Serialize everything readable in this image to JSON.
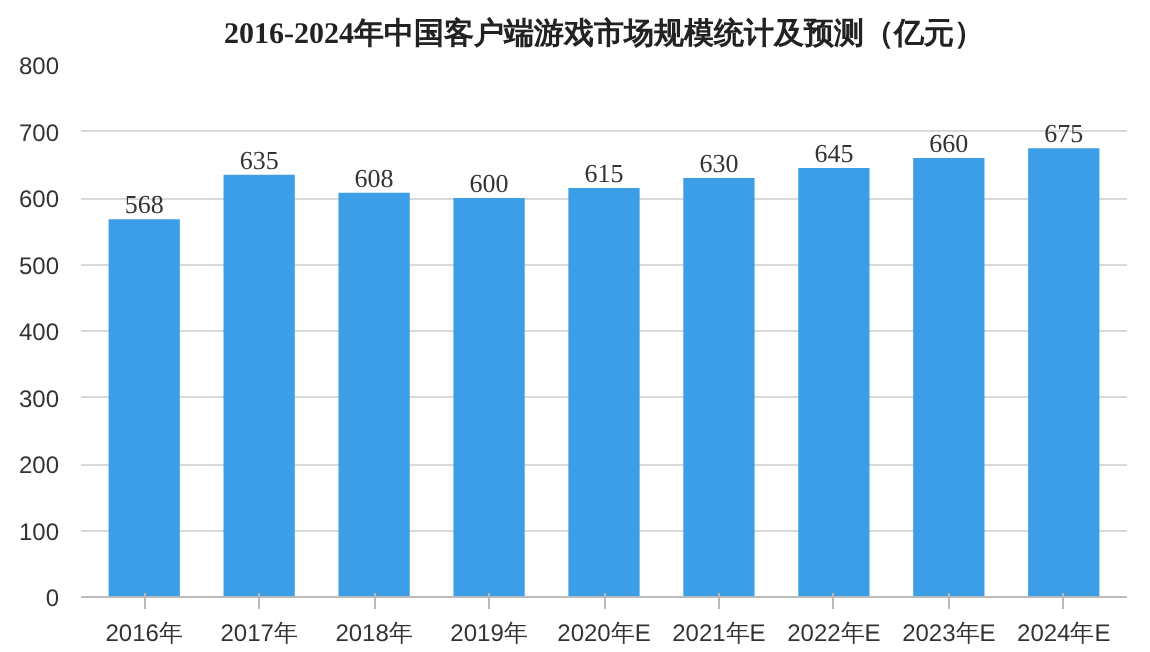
{
  "chart_data": {
    "type": "bar",
    "title": "2016-2024年中国客户端游戏市场规模统计及预测（亿元）",
    "categories": [
      "2016年",
      "2017年",
      "2018年",
      "2019年",
      "2020年E",
      "2021年E",
      "2022年E",
      "2023年E",
      "2024年E"
    ],
    "values": [
      568,
      635,
      608,
      600,
      615,
      630,
      645,
      660,
      675
    ],
    "color": "#3d9ee8",
    "ylim": [
      0,
      800
    ],
    "yticks": [
      0,
      100,
      200,
      300,
      400,
      500,
      600,
      700,
      800
    ],
    "grid": "y",
    "data_labels": true
  }
}
